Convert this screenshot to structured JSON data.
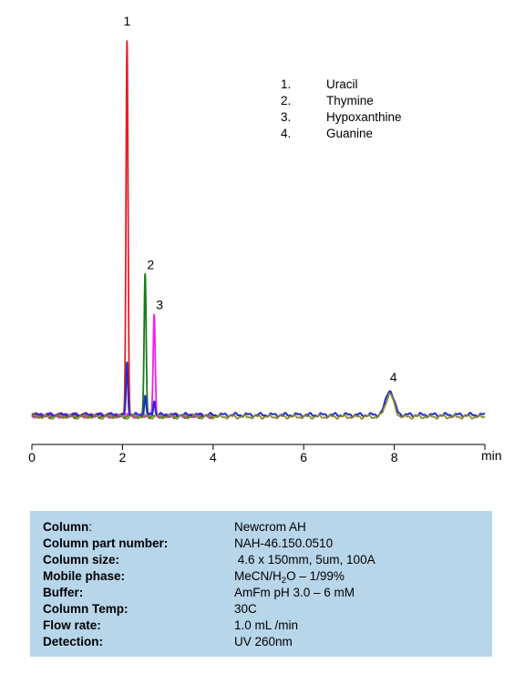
{
  "chart_data": {
    "type": "line",
    "title": "",
    "xlabel": "",
    "ylabel": "",
    "x_unit": "min",
    "xlim": [
      0,
      10
    ],
    "x_ticks": [
      0,
      2,
      4,
      6,
      8
    ],
    "x_tick_labels": [
      "0",
      "2",
      "4",
      "6",
      "8"
    ],
    "ylim": [
      0,
      100
    ],
    "grid": false,
    "legend": {
      "placement": "top-right",
      "entries": [
        {
          "num": "1.",
          "name": "Uracil"
        },
        {
          "num": "2.",
          "name": "Thymine"
        },
        {
          "num": "3.",
          "name": "Hypoxanthine"
        },
        {
          "num": "4.",
          "name": "Guanine"
        }
      ]
    },
    "peaks": [
      {
        "label": "1",
        "compound": "Uracil",
        "rt": 2.1,
        "height": 100
      },
      {
        "label": "2",
        "compound": "Thymine",
        "rt": 2.5,
        "height": 37.5
      },
      {
        "label": "3",
        "compound": "Hypoxanthine",
        "rt": 2.7,
        "height": 26.8
      },
      {
        "label": "4",
        "compound": "Guanine",
        "rt": 7.9,
        "height": 6.5
      }
    ],
    "series": [
      {
        "color": "#e41f26",
        "baseline": 0.5,
        "x_end": 2.2,
        "peaks": [
          {
            "x": 2.1,
            "h": 100,
            "w": 0.022
          }
        ]
      },
      {
        "color": "#1a7a1a",
        "baseline": 0.2,
        "x_end": 4.0,
        "peaks": [
          {
            "x": 2.5,
            "h": 38,
            "w": 0.022
          },
          {
            "x": 7.9,
            "h": 5,
            "w": 0.09
          }
        ]
      },
      {
        "color": "#ee22ee",
        "baseline": 0.4,
        "x_end": 4.0,
        "peaks": [
          {
            "x": 2.7,
            "h": 27,
            "w": 0.022
          }
        ]
      },
      {
        "color": "#1f2fc8",
        "baseline": 0.6,
        "x_end": 10.0,
        "peaks": [
          {
            "x": 2.1,
            "h": 14,
            "w": 0.02
          },
          {
            "x": 2.5,
            "h": 5,
            "w": 0.02
          },
          {
            "x": 2.7,
            "h": 4,
            "w": 0.02
          },
          {
            "x": 7.9,
            "h": 6.5,
            "w": 0.09
          }
        ]
      },
      {
        "color": "#8a8a2a",
        "baseline": 0.1,
        "x_end": 10.0,
        "peaks": [
          {
            "x": 7.9,
            "h": 6,
            "w": 0.09
          }
        ]
      }
    ]
  },
  "conditions": [
    {
      "label": "Column",
      "suffix": ":",
      "value": "Newcrom AH"
    },
    {
      "label": "Column part number:",
      "suffix": "",
      "value": "NAH-46.150.0510"
    },
    {
      "label": "Column size:",
      "suffix": "",
      "value": " 4.6 x 150mm, 5um, 100A"
    },
    {
      "label": "Mobile phase:",
      "suffix": "",
      "value": "MeCN/H",
      "value_sub": "2",
      "value_rest": "O – 1/99%"
    },
    {
      "label": "Buffer:",
      "suffix": "",
      "value": "AmFm pH 3.0 – 6 mM"
    },
    {
      "label": "Column Temp:",
      "suffix": "",
      "value": "30C"
    },
    {
      "label": "Flow rate:",
      "suffix": "",
      "value": "1.0 mL /min"
    },
    {
      "label": "Detection:",
      "suffix": "",
      "value": "UV 260nm"
    }
  ]
}
